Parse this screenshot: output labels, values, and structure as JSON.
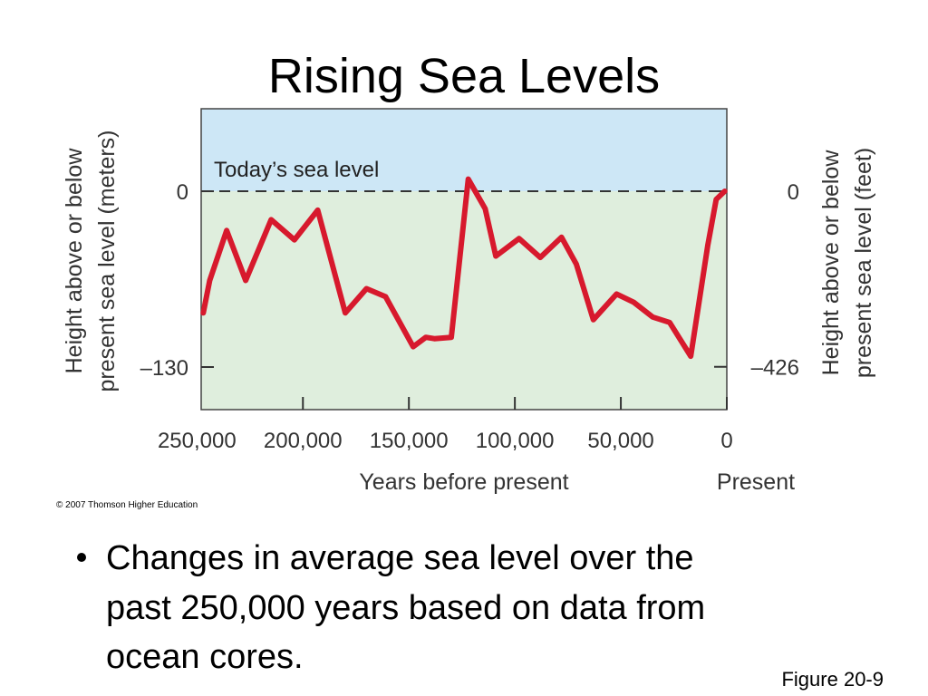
{
  "chart_data": {
    "type": "line",
    "title": "Rising Sea Levels",
    "ylabel": [
      "Height above or below",
      "present sea level (meters)"
    ],
    "y2label": [
      "Height above or below",
      "present sea level (feet)"
    ],
    "xlabel": "Years before present",
    "xlabel_end": "Present",
    "annotation": "Today’s sea level",
    "xlim": [
      248000,
      0
    ],
    "ylim": [
      -161.5,
      61
    ],
    "y2lim": [
      -529.9,
      200.1
    ],
    "xticks": [
      {
        "value": 250000,
        "label": "250,000"
      },
      {
        "value": 200000,
        "label": "200,000"
      },
      {
        "value": 150000,
        "label": "150,000"
      },
      {
        "value": 100000,
        "label": "100,000"
      },
      {
        "value": 50000,
        "label": "50,000"
      },
      0
    ],
    "yticks": [
      0,
      {
        "value": -130,
        "label": "–130"
      }
    ],
    "y2ticks": [
      0,
      {
        "value": -426,
        "label": "–426"
      }
    ],
    "x": [
      247000,
      244000,
      236000,
      227000,
      215000,
      204000,
      193000,
      180000,
      170000,
      161000,
      148000,
      142000,
      138000,
      130000,
      122000,
      114000,
      109000,
      98000,
      88000,
      78000,
      71000,
      63000,
      52000,
      44000,
      35000,
      27000,
      17000,
      9000,
      5000,
      1000
    ],
    "series": [
      {
        "name": "Sea level",
        "color": "#d7192d",
        "values": [
          -90,
          -66,
          -29,
          -66,
          -21,
          -36,
          -14,
          -90,
          -72,
          -78,
          -115,
          -108,
          -109,
          -108,
          9,
          -13,
          -48,
          -35,
          -49,
          -34,
          -54,
          -95,
          -76,
          -82,
          -93,
          -97,
          -122,
          -40,
          -6,
          0
        ]
      }
    ],
    "above_color": "#cde7f6",
    "below_color": "#dfeedd"
  },
  "copyright": "© 2007 Thomson Higher Education",
  "bullet": [
    "Changes in average sea level over the",
    "past 250,000 years based on data from",
    "ocean cores."
  ],
  "figure_label": "Figure 20-9"
}
